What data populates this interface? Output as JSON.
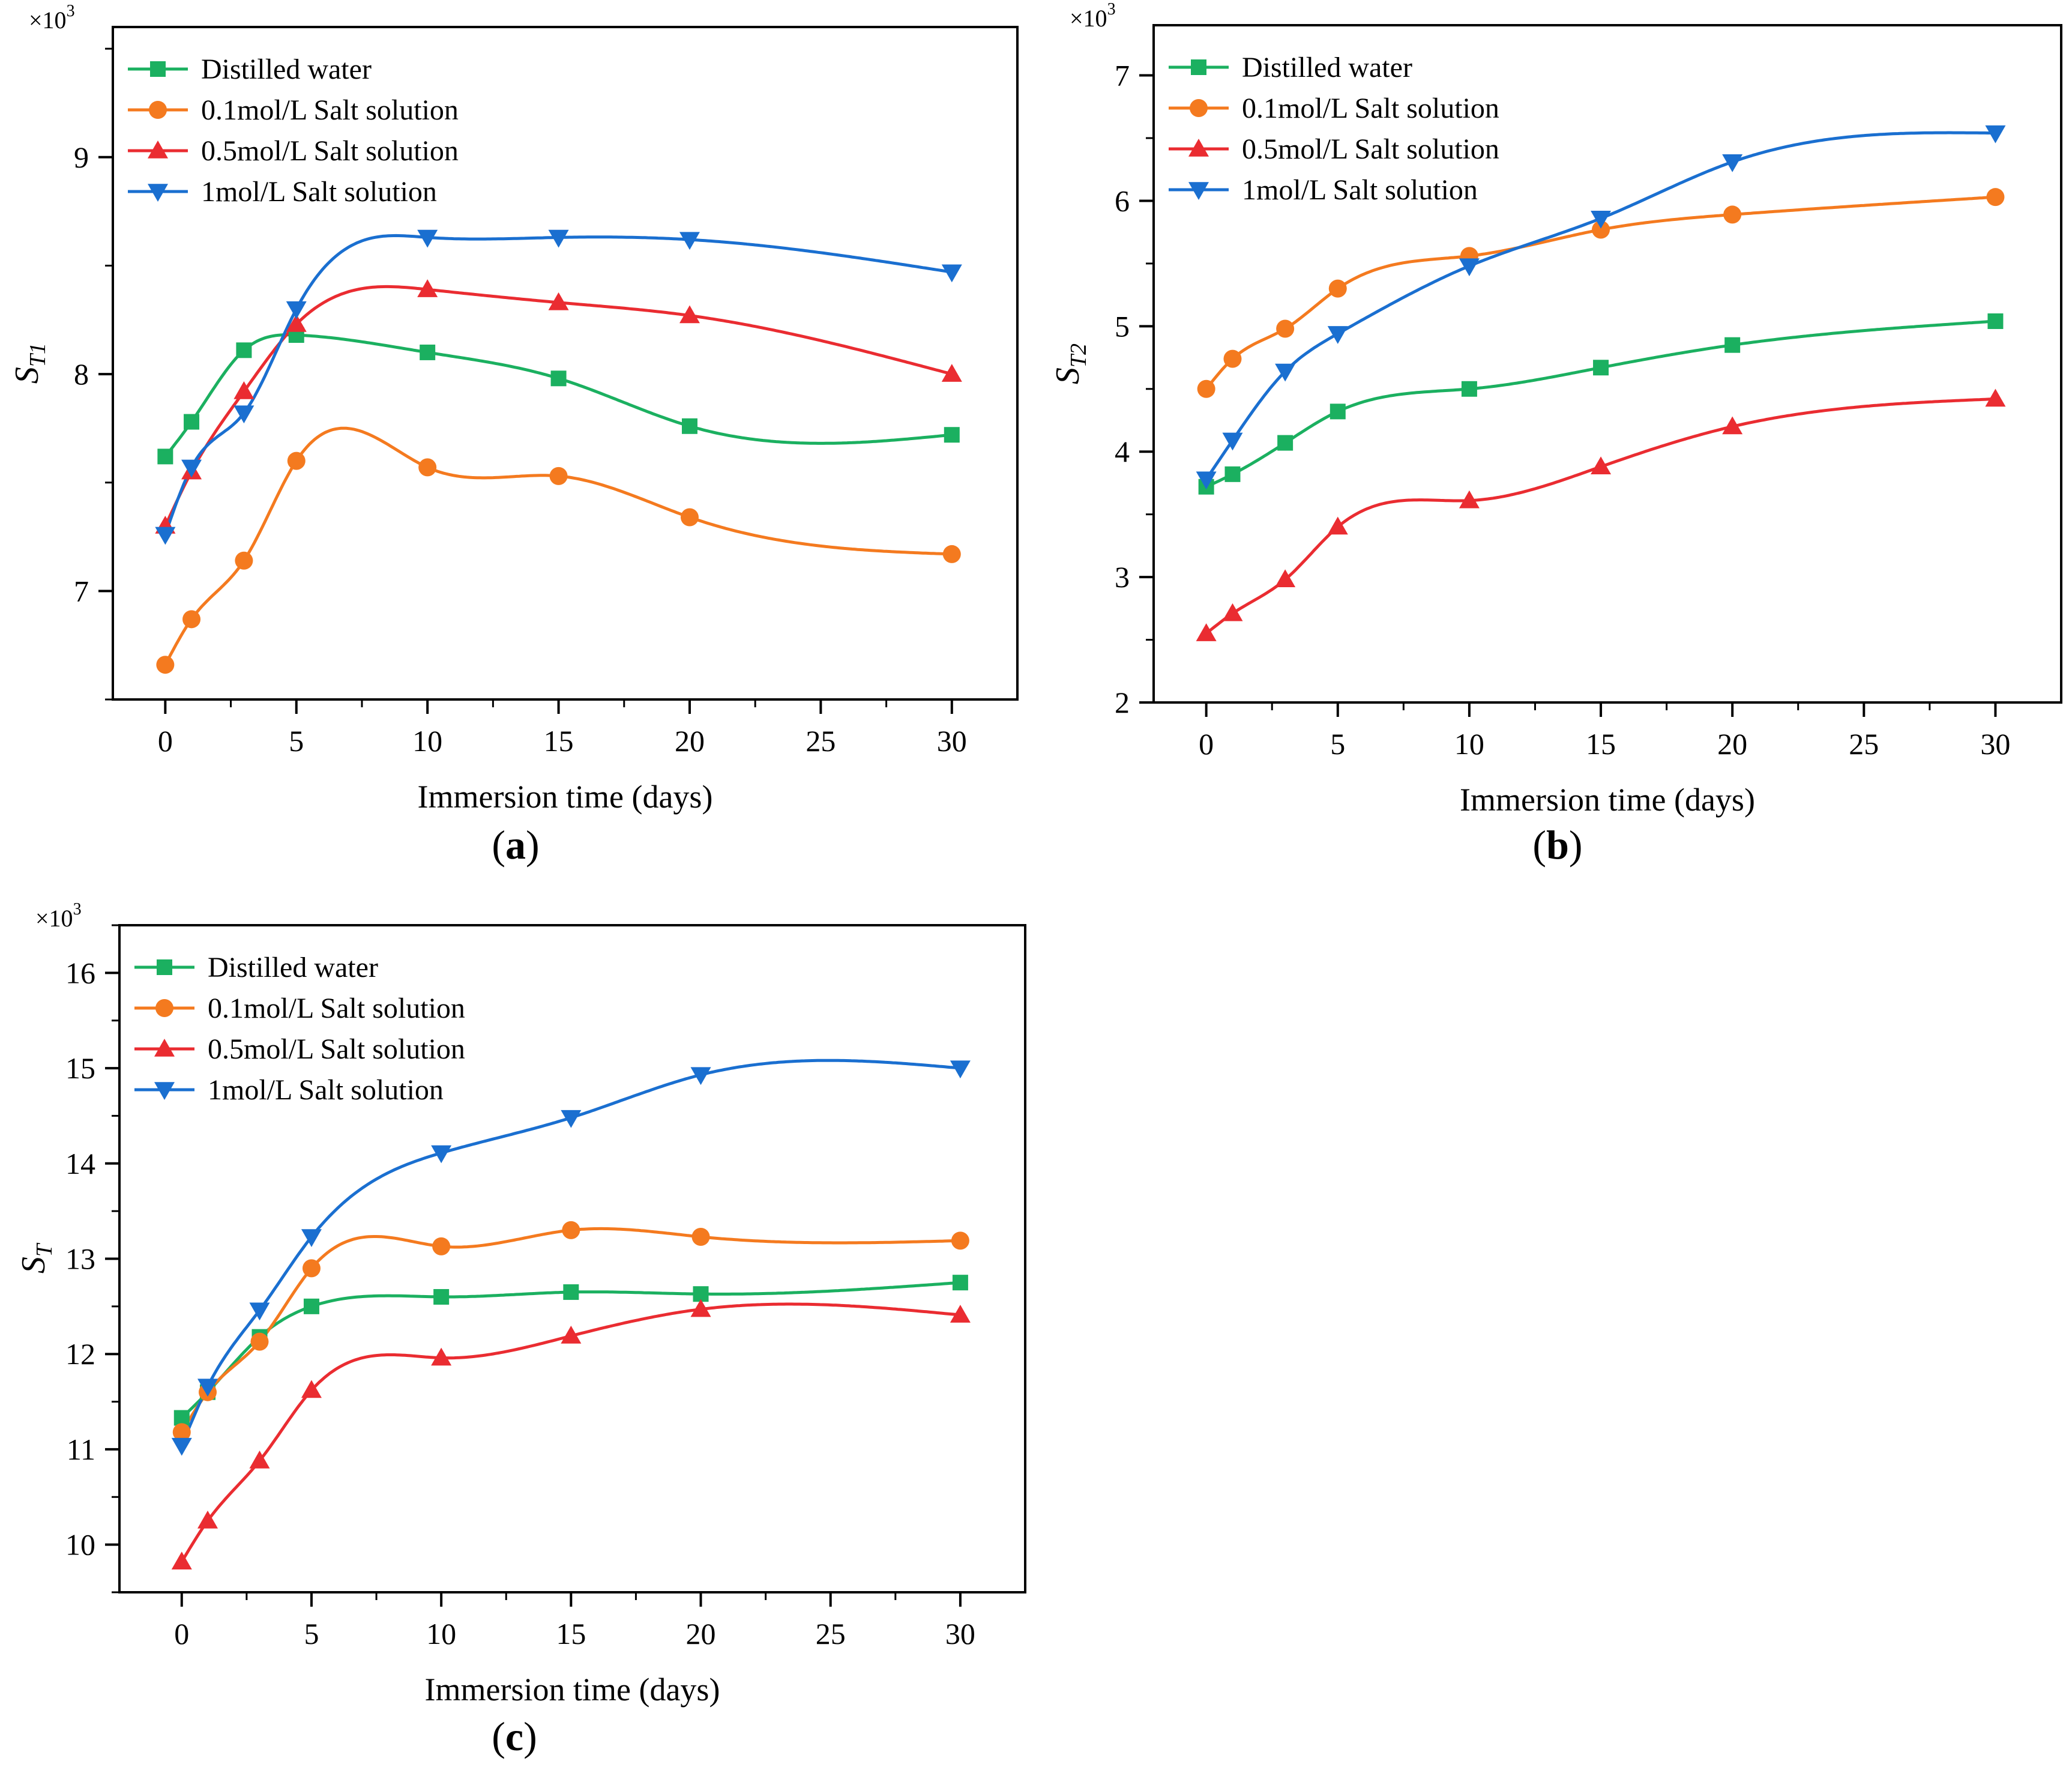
{
  "figure": {
    "panels": [
      {
        "tag": "a"
      },
      {
        "tag": "b"
      },
      {
        "tag": "c"
      }
    ]
  },
  "colors": {
    "distilled": "#1bb060",
    "salt01": "#f47a1f",
    "salt05": "#ea2c31",
    "salt1": "#1a6fd0"
  },
  "chart_data": [
    {
      "type": "line",
      "panel": "a",
      "xlabel": "Immersion time (days)",
      "ylabel": "S",
      "ylabel_sub": "T1",
      "multiplier": "×10",
      "multiplier_exp": "3",
      "xlim": [
        -2,
        32.5
      ],
      "ylim": [
        6.5,
        9.6
      ],
      "xticks": [
        0,
        5,
        10,
        15,
        20,
        25,
        30
      ],
      "yticks": [
        7,
        8,
        9
      ],
      "x": [
        0,
        1,
        3,
        5,
        10,
        15,
        20,
        30
      ],
      "series": [
        {
          "name": "Distilled water",
          "marker": "square",
          "color": "#1bb060",
          "values": [
            7.62,
            7.78,
            8.11,
            8.18,
            8.1,
            7.98,
            7.76,
            7.72
          ]
        },
        {
          "name": "0.1mol/L Salt solution",
          "marker": "circle",
          "color": "#f47a1f",
          "values": [
            6.66,
            6.87,
            7.14,
            7.6,
            7.57,
            7.53,
            7.34,
            7.17
          ]
        },
        {
          "name": "0.5mol/L Salt solution",
          "marker": "triangle-up",
          "color": "#ea2c31",
          "values": [
            7.3,
            7.55,
            7.92,
            8.23,
            8.39,
            8.33,
            8.27,
            8.0
          ]
        },
        {
          "name": "1mol/L Salt solution",
          "marker": "triangle-down",
          "color": "#1a6fd0",
          "values": [
            7.26,
            7.57,
            7.82,
            8.3,
            8.63,
            8.63,
            8.62,
            8.47
          ]
        }
      ]
    },
    {
      "type": "line",
      "panel": "b",
      "xlabel": "Immersion time (days)",
      "ylabel": "S",
      "ylabel_sub": "T2",
      "multiplier": "×10",
      "multiplier_exp": "3",
      "xlim": [
        -2,
        32.5
      ],
      "ylim": [
        2,
        7.4
      ],
      "xticks": [
        0,
        5,
        10,
        15,
        20,
        25,
        30
      ],
      "yticks": [
        2,
        3,
        4,
        5,
        6,
        7
      ],
      "x": [
        0,
        1,
        3,
        5,
        10,
        15,
        20,
        30
      ],
      "series": [
        {
          "name": "Distilled water",
          "marker": "square",
          "color": "#1bb060",
          "values": [
            3.72,
            3.82,
            4.07,
            4.32,
            4.5,
            4.67,
            4.85,
            5.04
          ]
        },
        {
          "name": "0.1mol/L Salt solution",
          "marker": "circle",
          "color": "#f47a1f",
          "values": [
            4.5,
            4.74,
            4.98,
            5.3,
            5.56,
            5.77,
            5.89,
            6.03
          ]
        },
        {
          "name": "0.5mol/L Salt solution",
          "marker": "triangle-up",
          "color": "#ea2c31",
          "values": [
            2.55,
            2.71,
            2.98,
            3.4,
            3.61,
            3.88,
            4.2,
            4.42
          ]
        },
        {
          "name": "1mol/L Salt solution",
          "marker": "triangle-down",
          "color": "#1a6fd0",
          "values": [
            3.78,
            4.09,
            4.64,
            4.94,
            5.48,
            5.86,
            6.31,
            6.54
          ]
        }
      ]
    },
    {
      "type": "line",
      "panel": "c",
      "xlabel": "Immersion time (days)",
      "ylabel": "S",
      "ylabel_sub": "T",
      "multiplier": "×10",
      "multiplier_exp": "3",
      "xlim": [
        -2.4,
        32.5
      ],
      "ylim": [
        9.5,
        16.5
      ],
      "xticks": [
        0,
        5,
        10,
        15,
        20,
        25,
        30
      ],
      "yticks": [
        10,
        11,
        12,
        13,
        14,
        15,
        16
      ],
      "x": [
        0,
        1,
        3,
        5,
        10,
        15,
        20,
        30
      ],
      "series": [
        {
          "name": "Distilled water",
          "marker": "square",
          "color": "#1bb060",
          "values": [
            11.33,
            11.6,
            12.18,
            12.5,
            12.6,
            12.65,
            12.63,
            12.75
          ]
        },
        {
          "name": "0.1mol/L Salt solution",
          "marker": "circle",
          "color": "#f47a1f",
          "values": [
            11.18,
            11.6,
            12.13,
            12.9,
            13.13,
            13.3,
            13.23,
            13.19
          ]
        },
        {
          "name": "0.5mol/L Salt solution",
          "marker": "triangle-up",
          "color": "#ea2c31",
          "values": [
            9.82,
            10.25,
            10.88,
            11.62,
            11.96,
            12.19,
            12.47,
            12.41
          ]
        },
        {
          "name": "1mol/L Salt solution",
          "marker": "triangle-down",
          "color": "#1a6fd0",
          "values": [
            11.04,
            11.66,
            12.46,
            13.23,
            14.11,
            14.48,
            14.93,
            15.0
          ]
        }
      ]
    }
  ]
}
